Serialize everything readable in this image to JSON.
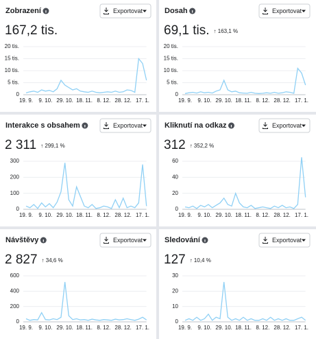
{
  "chart_data": [
    {
      "type": "line",
      "title": "Zobrazení",
      "value": "167,2 tis.",
      "export_label": "Exportovat",
      "color": "#8fd0f5",
      "categories": [
        "19. 9.",
        null,
        null,
        null,
        null,
        "9. 10.",
        null,
        null,
        null,
        null,
        "29. 10.",
        null,
        null,
        null,
        null,
        "18. 11.",
        null,
        null,
        null,
        null,
        "8. 12.",
        null,
        null,
        null,
        null,
        "28. 12.",
        null,
        null,
        null,
        null,
        "17. 1.",
        null
      ],
      "values": [
        0.8,
        1.2,
        1.5,
        1,
        2,
        1.5,
        1.8,
        1.2,
        2.5,
        6,
        4,
        3,
        2,
        2.5,
        1.5,
        1.2,
        1,
        1.5,
        1,
        0.8,
        1,
        1.2,
        1,
        1.5,
        1,
        1.2,
        2,
        1.8,
        1,
        15,
        13,
        6
      ],
      "ylim": [
        0,
        20
      ],
      "yticks": [
        0,
        {
          "value": 5,
          "label": "5 tis."
        },
        {
          "value": 10,
          "label": "10 tis."
        },
        {
          "value": 15,
          "label": "15 tis."
        },
        {
          "value": 20,
          "label": "20 tis."
        }
      ],
      "grid": true
    },
    {
      "type": "line",
      "title": "Dosah",
      "value": "69,1 tis.",
      "change": "↑ 163,1 %",
      "export_label": "Exportovat",
      "color": "#8fd0f5",
      "categories": [
        "19. 9.",
        null,
        null,
        null,
        null,
        "9. 10.",
        null,
        null,
        null,
        null,
        "29. 10.",
        null,
        null,
        null,
        null,
        "18. 11.",
        null,
        null,
        null,
        null,
        "8. 12.",
        null,
        null,
        null,
        null,
        "28. 12.",
        null,
        null,
        null,
        null,
        "17. 1.",
        null
      ],
      "values": [
        0.5,
        0.8,
        1,
        0.7,
        1.2,
        0.8,
        1,
        0.7,
        1.5,
        2,
        6,
        2,
        1.2,
        1.5,
        0.8,
        0.7,
        0.6,
        1,
        0.6,
        0.5,
        0.6,
        0.8,
        0.6,
        1,
        0.6,
        0.8,
        1.2,
        1,
        0.6,
        11,
        9,
        4
      ],
      "ylim": [
        0,
        20
      ],
      "yticks": [
        0,
        {
          "value": 5,
          "label": "5 tis."
        },
        {
          "value": 10,
          "label": "10 tis."
        },
        {
          "value": 15,
          "label": "15 tis."
        },
        {
          "value": 20,
          "label": "20 tis."
        }
      ],
      "grid": true
    },
    {
      "type": "line",
      "title": "Interakce s obsahem",
      "value": "2 311",
      "change": "↑ 299,1 %",
      "export_label": "Exportovat",
      "color": "#8fd0f5",
      "categories": [
        "19. 9.",
        null,
        null,
        null,
        null,
        "9. 10.",
        null,
        null,
        null,
        null,
        "29. 10.",
        null,
        null,
        null,
        null,
        "18. 11.",
        null,
        null,
        null,
        null,
        "8. 12.",
        null,
        null,
        null,
        null,
        "28. 12.",
        null,
        null,
        null,
        null,
        "17. 1.",
        null
      ],
      "values": [
        20,
        10,
        30,
        5,
        40,
        15,
        35,
        10,
        45,
        110,
        290,
        60,
        20,
        140,
        80,
        20,
        10,
        30,
        5,
        10,
        20,
        15,
        5,
        60,
        10,
        70,
        10,
        20,
        10,
        40,
        280,
        20
      ],
      "ylim": [
        0,
        300
      ],
      "yticks": [
        0,
        100,
        200,
        300
      ],
      "grid": true
    },
    {
      "type": "line",
      "title": "Kliknutí na odkaz",
      "value": "312",
      "change": "↑ 352,2 %",
      "export_label": "Exportovat",
      "color": "#8fd0f5",
      "categories": [
        "19. 9.",
        null,
        null,
        null,
        null,
        "9. 10.",
        null,
        null,
        null,
        null,
        "29. 10.",
        null,
        null,
        null,
        null,
        "18. 11.",
        null,
        null,
        null,
        null,
        "8. 12.",
        null,
        null,
        null,
        null,
        "28. 12.",
        null,
        null,
        null,
        null,
        "17. 1.",
        null
      ],
      "values": [
        3,
        2,
        4,
        1,
        5,
        3,
        6,
        2,
        5,
        8,
        14,
        6,
        4,
        20,
        8,
        3,
        2,
        5,
        1,
        2,
        3,
        2,
        1,
        4,
        2,
        5,
        2,
        3,
        1,
        6,
        65,
        15
      ],
      "ylim": [
        0,
        70
      ],
      "yticks": [
        0,
        20,
        40,
        60
      ],
      "grid": true
    },
    {
      "type": "line",
      "title": "Návštěvy",
      "value": "2 827",
      "change": "↑ 34,6 %",
      "export_label": "Exportovat",
      "color": "#8fd0f5",
      "categories": [
        "19. 9.",
        null,
        null,
        null,
        null,
        "9. 10.",
        null,
        null,
        null,
        null,
        "29. 10.",
        null,
        null,
        null,
        null,
        "18. 11.",
        null,
        null,
        null,
        null,
        "8. 12.",
        null,
        null,
        null,
        null,
        "28. 12.",
        null,
        null,
        null,
        null,
        "17. 1.",
        null
      ],
      "values": [
        40,
        20,
        30,
        25,
        120,
        30,
        25,
        40,
        30,
        60,
        520,
        80,
        30,
        40,
        25,
        30,
        20,
        35,
        25,
        20,
        30,
        25,
        20,
        35,
        25,
        30,
        40,
        30,
        20,
        35,
        60,
        25
      ],
      "ylim": [
        0,
        650
      ],
      "yticks": [
        0,
        200,
        400,
        600
      ],
      "grid": true
    },
    {
      "type": "line",
      "title": "Sledování",
      "value": "127",
      "change": "↑ 10,4 %",
      "export_label": "Exportovat",
      "color": "#8fd0f5",
      "categories": [
        "19. 9.",
        null,
        null,
        null,
        null,
        "9. 10.",
        null,
        null,
        null,
        null,
        "29. 10.",
        null,
        null,
        null,
        null,
        "18. 11.",
        null,
        null,
        null,
        null,
        "8. 12.",
        null,
        null,
        null,
        null,
        "28. 12.",
        null,
        null,
        null,
        null,
        "17. 1.",
        null
      ],
      "values": [
        1,
        2,
        1,
        3,
        1,
        2,
        5,
        1,
        3,
        2,
        26,
        3,
        1,
        2,
        1,
        3,
        1,
        2,
        1,
        1,
        2,
        1,
        3,
        1,
        2,
        1,
        2,
        1,
        1,
        2,
        3,
        1
      ],
      "ylim": [
        0,
        35
      ],
      "yticks": [
        0,
        10,
        20,
        30
      ],
      "grid": true
    }
  ]
}
